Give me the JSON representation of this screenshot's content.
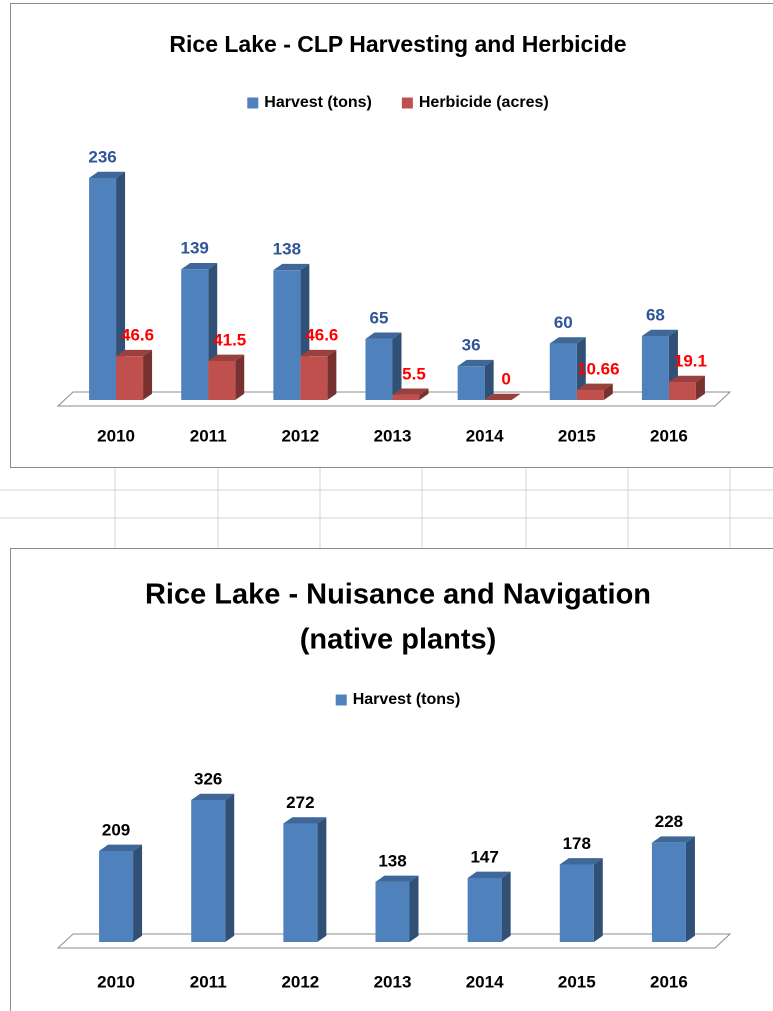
{
  "chart_data": [
    {
      "type": "bar3d",
      "title": [
        "Rice Lake - CLP Harvesting and Herbicide"
      ],
      "categories": [
        "2010",
        "2011",
        "2012",
        "2013",
        "2014",
        "2015",
        "2016"
      ],
      "series": [
        {
          "name": "Harvest (tons)",
          "color": "#4f81bd",
          "label_color": "#2f5597",
          "values": [
            236,
            139,
            138,
            65,
            36,
            60,
            68
          ]
        },
        {
          "name": "Herbicide (acres)",
          "color": "#c0504d",
          "label_color": "#ff0000",
          "values": [
            46.6,
            41.5,
            46.6,
            5.5,
            0,
            10.66,
            19.1
          ]
        }
      ],
      "legend": "top"
    },
    {
      "type": "bar3d",
      "title": [
        "Rice Lake - Nuisance and Navigation",
        "(native plants)"
      ],
      "categories": [
        "2010",
        "2011",
        "2012",
        "2013",
        "2014",
        "2015",
        "2016"
      ],
      "series": [
        {
          "name": "Harvest (tons)",
          "color": "#4f81bd",
          "label_color": "#000000",
          "values": [
            209,
            326,
            272,
            138,
            147,
            178,
            228
          ]
        }
      ],
      "legend": "top"
    }
  ]
}
